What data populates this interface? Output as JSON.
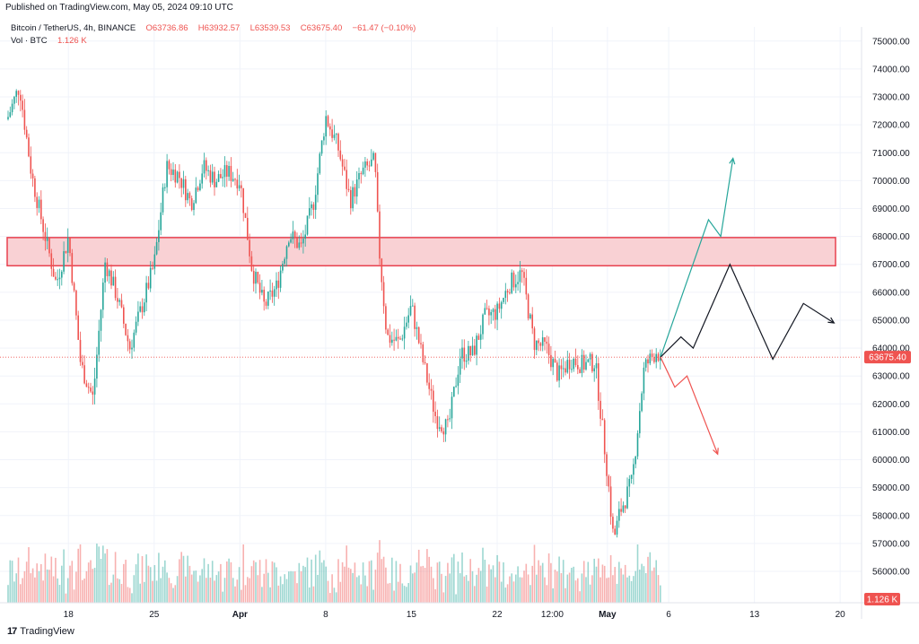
{
  "header": {
    "published": "Published on TradingView.com, May 05, 2024 09:10 UTC",
    "symbol_line": "Bitcoin / TetherUS, 4h, BINANCE",
    "open": "O63736.86",
    "high": "H63932.57",
    "low": "L63539.53",
    "close": "C63675.40",
    "change": "−61.47 (−0.10%)",
    "volume_label": "Vol · BTC",
    "volume_value": "1.126 K"
  },
  "footer": {
    "brand": "TradingView",
    "logo_icon": "tradingview-logo-icon"
  },
  "colors": {
    "up": "#26a69a",
    "down": "#ef5350",
    "zone_fill": "#f9d1d4",
    "zone_stroke": "#e8414f",
    "grid": "#f0f3fa",
    "text": "#131722",
    "price_line": "#ef5350",
    "bull_arrow": "#26a69a",
    "bear_arrow": "#ef5350",
    "neutral_arrow": "#131722"
  },
  "chart_data": {
    "type": "candlestick",
    "interval": "4h",
    "y_axis": {
      "range": [
        55000,
        75500
      ],
      "ticks": [
        56000,
        57000,
        58000,
        59000,
        60000,
        61000,
        62000,
        63000,
        64000,
        65000,
        66000,
        67000,
        68000,
        69000,
        70000,
        71000,
        72000,
        73000,
        74000,
        75000
      ],
      "tick_labels": [
        "56000.00",
        "57000.00",
        "58000.00",
        "59000.00",
        "60000.00",
        "61000.00",
        "62000.00",
        "63000.00",
        "64000.00",
        "65000.00",
        "66000.00",
        "67000.00",
        "68000.00",
        "69000.00",
        "70000.00",
        "71000.00",
        "72000.00",
        "73000.00",
        "74000.00",
        "75000.00"
      ]
    },
    "x_axis": {
      "range": [
        "2024-03-13",
        "2024-05-20T12:00"
      ],
      "ticks": [
        {
          "t": "2024-03-18",
          "label": "18"
        },
        {
          "t": "2024-03-25",
          "label": "25"
        },
        {
          "t": "2024-04-01",
          "label": "Apr"
        },
        {
          "t": "2024-04-08",
          "label": "8"
        },
        {
          "t": "2024-04-15",
          "label": "15"
        },
        {
          "t": "2024-04-22",
          "label": "22"
        },
        {
          "t": "2024-04-26T12:00",
          "label": "12:00"
        },
        {
          "t": "2024-05-01",
          "label": "May"
        },
        {
          "t": "2024-05-06",
          "label": "6"
        },
        {
          "t": "2024-05-13",
          "label": "13"
        },
        {
          "t": "2024-05-20",
          "label": "20"
        }
      ]
    },
    "price_path": [
      {
        "t": "2024-03-13",
        "y": 72200
      },
      {
        "t": "2024-03-14",
        "y": 73400
      },
      {
        "t": "2024-03-15",
        "y": 70200
      },
      {
        "t": "2024-03-16",
        "y": 68200
      },
      {
        "t": "2024-03-17",
        "y": 66300
      },
      {
        "t": "2024-03-18",
        "y": 68000
      },
      {
        "t": "2024-03-19",
        "y": 63400
      },
      {
        "t": "2024-03-20",
        "y": 62200
      },
      {
        "t": "2024-03-21",
        "y": 67100
      },
      {
        "t": "2024-03-22",
        "y": 65800
      },
      {
        "t": "2024-03-23",
        "y": 64000
      },
      {
        "t": "2024-03-24",
        "y": 65500
      },
      {
        "t": "2024-03-25",
        "y": 67000
      },
      {
        "t": "2024-03-26",
        "y": 70500
      },
      {
        "t": "2024-03-27",
        "y": 70200
      },
      {
        "t": "2024-03-28",
        "y": 69200
      },
      {
        "t": "2024-03-29",
        "y": 70500
      },
      {
        "t": "2024-03-30",
        "y": 70000
      },
      {
        "t": "2024-03-31",
        "y": 70300
      },
      {
        "t": "2024-04-01",
        "y": 70000
      },
      {
        "t": "2024-04-02",
        "y": 66800
      },
      {
        "t": "2024-04-03",
        "y": 65500
      },
      {
        "t": "2024-04-04",
        "y": 66200
      },
      {
        "t": "2024-04-05",
        "y": 68100
      },
      {
        "t": "2024-04-06",
        "y": 67600
      },
      {
        "t": "2024-04-07",
        "y": 69200
      },
      {
        "t": "2024-04-08",
        "y": 72300
      },
      {
        "t": "2024-04-09",
        "y": 71200
      },
      {
        "t": "2024-04-10",
        "y": 69300
      },
      {
        "t": "2024-04-11",
        "y": 70300
      },
      {
        "t": "2024-04-12",
        "y": 70700
      },
      {
        "t": "2024-04-12T08:00",
        "y": 67700
      },
      {
        "t": "2024-04-13",
        "y": 64400
      },
      {
        "t": "2024-04-14",
        "y": 64200
      },
      {
        "t": "2024-04-15",
        "y": 65500
      },
      {
        "t": "2024-04-16",
        "y": 63400
      },
      {
        "t": "2024-04-17",
        "y": 61500
      },
      {
        "t": "2024-04-18",
        "y": 61100
      },
      {
        "t": "2024-04-19",
        "y": 63800
      },
      {
        "t": "2024-04-20",
        "y": 63800
      },
      {
        "t": "2024-04-21",
        "y": 65100
      },
      {
        "t": "2024-04-22",
        "y": 65300
      },
      {
        "t": "2024-04-23",
        "y": 66300
      },
      {
        "t": "2024-04-24",
        "y": 66700
      },
      {
        "t": "2024-04-25",
        "y": 64200
      },
      {
        "t": "2024-04-26",
        "y": 64000
      },
      {
        "t": "2024-04-27",
        "y": 63000
      },
      {
        "t": "2024-04-28",
        "y": 63600
      },
      {
        "t": "2024-04-29",
        "y": 63400
      },
      {
        "t": "2024-04-30",
        "y": 63500
      },
      {
        "t": "2024-05-01",
        "y": 59500
      },
      {
        "t": "2024-05-01T12:00",
        "y": 57100
      },
      {
        "t": "2024-05-02",
        "y": 58100
      },
      {
        "t": "2024-05-03",
        "y": 59200
      },
      {
        "t": "2024-05-04",
        "y": 63300
      },
      {
        "t": "2024-05-05",
        "y": 63900
      },
      {
        "t": "2024-05-05T08:00",
        "y": 63675
      }
    ],
    "volume_series_note": "Vol BTC",
    "resistance_zone": {
      "from": "2024-03-13",
      "to": "2024-05-20",
      "low": 66950,
      "high": 67960
    },
    "last_price": {
      "value": 63675.4,
      "label": "63675.40"
    },
    "last_volume": {
      "label": "1.126 K"
    },
    "projections": [
      {
        "name": "bull",
        "color": "#26a69a",
        "points": [
          {
            "t": "2024-05-05T08:00",
            "y": 63675
          },
          {
            "t": "2024-05-09T06:00",
            "y": 68600
          },
          {
            "t": "2024-05-10T06:00",
            "y": 68000
          },
          {
            "t": "2024-05-11T06:00",
            "y": 70800
          }
        ]
      },
      {
        "name": "neutral",
        "color": "#131722",
        "points": [
          {
            "t": "2024-05-05T08:00",
            "y": 63675
          },
          {
            "t": "2024-05-07",
            "y": 64400
          },
          {
            "t": "2024-05-08",
            "y": 64000
          },
          {
            "t": "2024-05-11",
            "y": 67000
          },
          {
            "t": "2024-05-14T12:00",
            "y": 63600
          },
          {
            "t": "2024-05-17",
            "y": 65600
          },
          {
            "t": "2024-05-19T12:00",
            "y": 64900
          }
        ]
      },
      {
        "name": "bear",
        "color": "#ef5350",
        "points": [
          {
            "t": "2024-05-05T08:00",
            "y": 63675
          },
          {
            "t": "2024-05-06T12:00",
            "y": 62600
          },
          {
            "t": "2024-05-07T12:00",
            "y": 63000
          },
          {
            "t": "2024-05-10",
            "y": 60200
          }
        ]
      }
    ]
  }
}
